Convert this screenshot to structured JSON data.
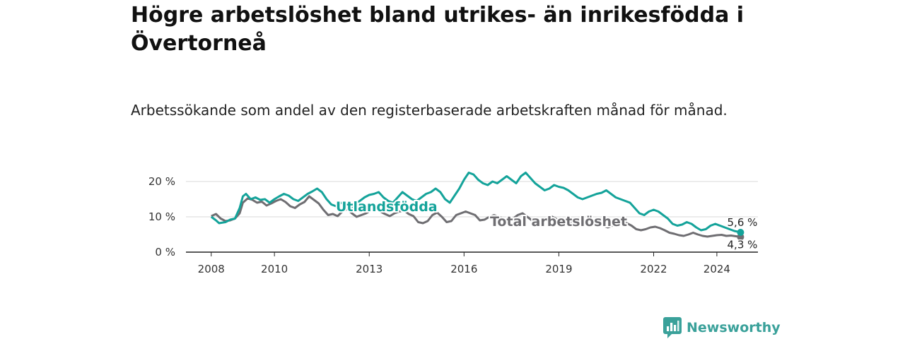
{
  "title": "Högre arbetslöshet bland utrikes- än inrikesfödda i Övertorneå",
  "subtitle": "Arbetssökande som andel av den registerbaserade arbetskraften månad för månad.",
  "brand": {
    "name": "Newsworthy",
    "icon": "newsworthy-logo-icon",
    "color": "#3aa19a"
  },
  "chart_data": {
    "type": "line",
    "y_ticks": [
      "0 %",
      "10 %",
      "20 %"
    ],
    "y_tick_values": [
      0,
      10,
      20
    ],
    "x_ticks": [
      "2008",
      "2010",
      "2013",
      "2016",
      "2019",
      "2022",
      "2024"
    ],
    "x_tick_values": [
      2008,
      2010,
      2013,
      2016,
      2019,
      2022,
      2024
    ],
    "ylim": [
      0,
      25
    ],
    "xlim": [
      2007.2,
      2025.3
    ],
    "grid": "horizontal",
    "series": [
      {
        "name": "Total arbetslöshet",
        "color": "#6f6e72",
        "end_label": "4,3 %",
        "points": [
          [
            2008.0,
            10.2
          ],
          [
            2008.15,
            10.8
          ],
          [
            2008.3,
            9.5
          ],
          [
            2008.45,
            8.8
          ],
          [
            2008.6,
            9.0
          ],
          [
            2008.75,
            9.5
          ],
          [
            2008.9,
            11.0
          ],
          [
            2009.0,
            14.0
          ],
          [
            2009.15,
            15.2
          ],
          [
            2009.3,
            14.8
          ],
          [
            2009.45,
            14.0
          ],
          [
            2009.6,
            14.3
          ],
          [
            2009.75,
            13.2
          ],
          [
            2009.9,
            13.8
          ],
          [
            2010.05,
            14.5
          ],
          [
            2010.2,
            15.0
          ],
          [
            2010.35,
            14.2
          ],
          [
            2010.5,
            13.0
          ],
          [
            2010.65,
            12.5
          ],
          [
            2010.8,
            13.5
          ],
          [
            2010.95,
            14.2
          ],
          [
            2011.1,
            15.8
          ],
          [
            2011.25,
            14.8
          ],
          [
            2011.4,
            13.8
          ],
          [
            2011.55,
            12.0
          ],
          [
            2011.7,
            10.5
          ],
          [
            2011.85,
            10.8
          ],
          [
            2012.0,
            10.2
          ],
          [
            2012.15,
            11.5
          ],
          [
            2012.3,
            12.2
          ],
          [
            2012.45,
            11.0
          ],
          [
            2012.6,
            10.0
          ],
          [
            2012.75,
            10.5
          ],
          [
            2012.9,
            11.0
          ],
          [
            2013.05,
            11.8
          ],
          [
            2013.2,
            12.5
          ],
          [
            2013.35,
            11.5
          ],
          [
            2013.5,
            10.8
          ],
          [
            2013.65,
            10.2
          ],
          [
            2013.8,
            11.0
          ],
          [
            2013.95,
            11.5
          ],
          [
            2014.1,
            11.8
          ],
          [
            2014.25,
            10.8
          ],
          [
            2014.4,
            10.2
          ],
          [
            2014.55,
            8.5
          ],
          [
            2014.7,
            8.2
          ],
          [
            2014.85,
            8.8
          ],
          [
            2015.0,
            10.5
          ],
          [
            2015.15,
            11.2
          ],
          [
            2015.3,
            10.0
          ],
          [
            2015.45,
            8.5
          ],
          [
            2015.6,
            8.8
          ],
          [
            2015.75,
            10.5
          ],
          [
            2015.9,
            11.0
          ],
          [
            2016.05,
            11.5
          ],
          [
            2016.2,
            11.0
          ],
          [
            2016.35,
            10.5
          ],
          [
            2016.5,
            9.0
          ],
          [
            2016.65,
            9.2
          ],
          [
            2016.8,
            10.0
          ],
          [
            2016.95,
            10.5
          ],
          [
            2017.1,
            10.0
          ],
          [
            2017.25,
            9.5
          ],
          [
            2017.4,
            9.0
          ],
          [
            2017.55,
            9.5
          ],
          [
            2017.7,
            10.5
          ],
          [
            2017.85,
            11.0
          ],
          [
            2018.0,
            10.0
          ],
          [
            2018.15,
            9.0
          ],
          [
            2018.3,
            8.5
          ],
          [
            2018.45,
            9.0
          ],
          [
            2018.6,
            9.5
          ],
          [
            2018.75,
            10.2
          ],
          [
            2018.9,
            9.5
          ],
          [
            2019.05,
            8.5
          ],
          [
            2019.2,
            8.0
          ],
          [
            2019.35,
            8.5
          ],
          [
            2019.5,
            9.0
          ],
          [
            2019.65,
            8.8
          ],
          [
            2019.8,
            8.0
          ],
          [
            2019.95,
            7.5
          ],
          [
            2020.1,
            7.8
          ],
          [
            2020.25,
            8.2
          ],
          [
            2020.4,
            7.5
          ],
          [
            2020.55,
            7.0
          ],
          [
            2020.7,
            7.5
          ],
          [
            2020.85,
            8.0
          ],
          [
            2021.0,
            8.5
          ],
          [
            2021.15,
            8.2
          ],
          [
            2021.3,
            7.5
          ],
          [
            2021.45,
            6.5
          ],
          [
            2021.6,
            6.2
          ],
          [
            2021.75,
            6.5
          ],
          [
            2021.9,
            7.0
          ],
          [
            2022.05,
            7.2
          ],
          [
            2022.2,
            6.8
          ],
          [
            2022.35,
            6.2
          ],
          [
            2022.5,
            5.5
          ],
          [
            2022.65,
            5.2
          ],
          [
            2022.8,
            4.8
          ],
          [
            2022.95,
            4.6
          ],
          [
            2023.1,
            5.0
          ],
          [
            2023.25,
            5.5
          ],
          [
            2023.4,
            5.0
          ],
          [
            2023.55,
            4.6
          ],
          [
            2023.7,
            4.4
          ],
          [
            2023.85,
            4.6
          ],
          [
            2024.0,
            4.8
          ],
          [
            2024.15,
            4.9
          ],
          [
            2024.3,
            4.6
          ],
          [
            2024.45,
            4.7
          ],
          [
            2024.6,
            4.5
          ],
          [
            2024.75,
            4.3
          ]
        ]
      },
      {
        "name": "Utlandsfödda",
        "color": "#14a39a",
        "end_label": "5,6 %",
        "points": [
          [
            2008.0,
            10.0
          ],
          [
            2008.15,
            9.0
          ],
          [
            2008.25,
            8.2
          ],
          [
            2008.45,
            8.5
          ],
          [
            2008.6,
            9.2
          ],
          [
            2008.75,
            9.5
          ],
          [
            2008.9,
            12.5
          ],
          [
            2009.0,
            15.8
          ],
          [
            2009.1,
            16.5
          ],
          [
            2009.25,
            15.0
          ],
          [
            2009.4,
            15.5
          ],
          [
            2009.55,
            14.8
          ],
          [
            2009.7,
            15.0
          ],
          [
            2009.85,
            14.0
          ],
          [
            2010.0,
            15.0
          ],
          [
            2010.15,
            15.8
          ],
          [
            2010.3,
            16.5
          ],
          [
            2010.45,
            16.0
          ],
          [
            2010.6,
            15.0
          ],
          [
            2010.75,
            14.5
          ],
          [
            2010.9,
            15.5
          ],
          [
            2011.05,
            16.5
          ],
          [
            2011.2,
            17.2
          ],
          [
            2011.35,
            18.0
          ],
          [
            2011.5,
            17.0
          ],
          [
            2011.65,
            15.0
          ],
          [
            2011.8,
            13.5
          ],
          [
            2011.95,
            13.0
          ],
          [
            2012.1,
            14.0
          ],
          [
            2012.25,
            13.5
          ],
          [
            2012.4,
            12.5
          ],
          [
            2012.55,
            13.5
          ],
          [
            2012.7,
            14.5
          ],
          [
            2012.85,
            15.5
          ],
          [
            2013.0,
            16.2
          ],
          [
            2013.15,
            16.5
          ],
          [
            2013.3,
            17.0
          ],
          [
            2013.45,
            15.5
          ],
          [
            2013.6,
            14.5
          ],
          [
            2013.75,
            14.0
          ],
          [
            2013.9,
            15.5
          ],
          [
            2014.05,
            17.0
          ],
          [
            2014.2,
            16.0
          ],
          [
            2014.35,
            15.0
          ],
          [
            2014.5,
            14.5
          ],
          [
            2014.65,
            15.5
          ],
          [
            2014.8,
            16.5
          ],
          [
            2014.95,
            17.0
          ],
          [
            2015.1,
            18.0
          ],
          [
            2015.25,
            17.0
          ],
          [
            2015.4,
            15.0
          ],
          [
            2015.55,
            14.0
          ],
          [
            2015.7,
            16.0
          ],
          [
            2015.85,
            18.0
          ],
          [
            2016.0,
            20.5
          ],
          [
            2016.15,
            22.5
          ],
          [
            2016.3,
            22.0
          ],
          [
            2016.45,
            20.5
          ],
          [
            2016.6,
            19.5
          ],
          [
            2016.75,
            19.0
          ],
          [
            2016.9,
            20.0
          ],
          [
            2017.05,
            19.5
          ],
          [
            2017.2,
            20.5
          ],
          [
            2017.35,
            21.5
          ],
          [
            2017.5,
            20.5
          ],
          [
            2017.65,
            19.5
          ],
          [
            2017.8,
            21.5
          ],
          [
            2017.95,
            22.5
          ],
          [
            2018.1,
            21.0
          ],
          [
            2018.25,
            19.5
          ],
          [
            2018.4,
            18.5
          ],
          [
            2018.55,
            17.5
          ],
          [
            2018.7,
            18.0
          ],
          [
            2018.85,
            19.0
          ],
          [
            2019.0,
            18.5
          ],
          [
            2019.15,
            18.2
          ],
          [
            2019.3,
            17.5
          ],
          [
            2019.45,
            16.5
          ],
          [
            2019.6,
            15.5
          ],
          [
            2019.75,
            15.0
          ],
          [
            2019.9,
            15.5
          ],
          [
            2020.05,
            16.0
          ],
          [
            2020.2,
            16.5
          ],
          [
            2020.35,
            16.8
          ],
          [
            2020.5,
            17.5
          ],
          [
            2020.65,
            16.5
          ],
          [
            2020.8,
            15.5
          ],
          [
            2020.95,
            15.0
          ],
          [
            2021.1,
            14.5
          ],
          [
            2021.25,
            14.0
          ],
          [
            2021.4,
            12.5
          ],
          [
            2021.55,
            11.0
          ],
          [
            2021.7,
            10.5
          ],
          [
            2021.85,
            11.5
          ],
          [
            2022.0,
            12.0
          ],
          [
            2022.15,
            11.5
          ],
          [
            2022.3,
            10.5
          ],
          [
            2022.45,
            9.5
          ],
          [
            2022.6,
            8.0
          ],
          [
            2022.75,
            7.5
          ],
          [
            2022.9,
            7.8
          ],
          [
            2023.05,
            8.5
          ],
          [
            2023.2,
            8.0
          ],
          [
            2023.35,
            7.0
          ],
          [
            2023.5,
            6.2
          ],
          [
            2023.65,
            6.5
          ],
          [
            2023.8,
            7.5
          ],
          [
            2023.95,
            8.0
          ],
          [
            2024.1,
            7.5
          ],
          [
            2024.25,
            7.0
          ],
          [
            2024.4,
            6.5
          ],
          [
            2024.55,
            6.0
          ],
          [
            2024.75,
            5.6
          ]
        ]
      }
    ]
  }
}
